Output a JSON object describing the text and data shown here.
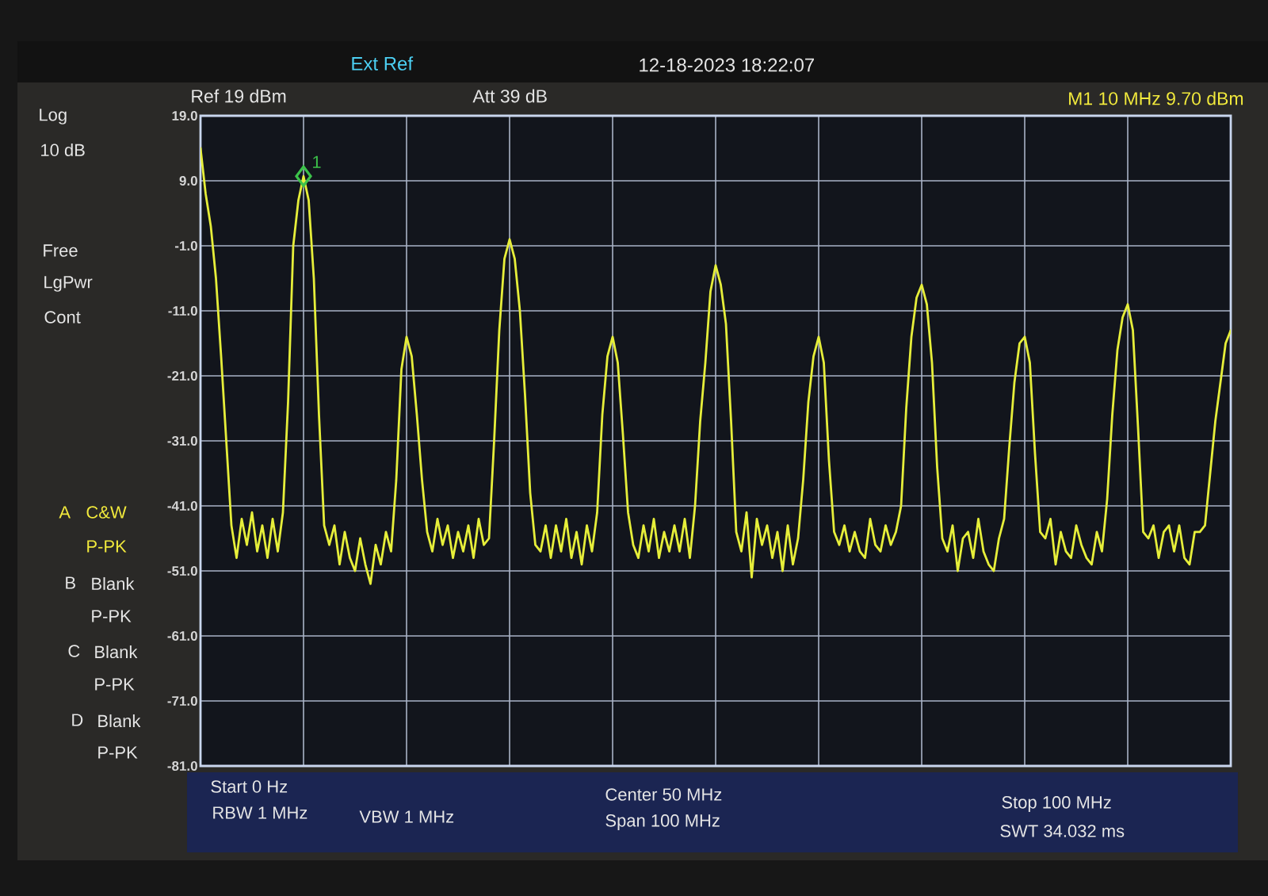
{
  "chart_data": {
    "type": "line",
    "categories": [
      null,
      null,
      null,
      null,
      null,
      null,
      null,
      null,
      null,
      null,
      null,
      null,
      null,
      null,
      null,
      null,
      null,
      null,
      null,
      null,
      null,
      null,
      null,
      null,
      null,
      null,
      null,
      null,
      null,
      null,
      null,
      null,
      null,
      null,
      null,
      null,
      null,
      null,
      null,
      null,
      null,
      null,
      null,
      null,
      null,
      null,
      null,
      null,
      null,
      null,
      null,
      null,
      null,
      null,
      null,
      null,
      null,
      null,
      null,
      null,
      null,
      null,
      null,
      null,
      null,
      null,
      null,
      null,
      null,
      null,
      null,
      null,
      null,
      null,
      null,
      null,
      null,
      null,
      null,
      null,
      null,
      null,
      null,
      null,
      null,
      null,
      null,
      null,
      null,
      null,
      null,
      null,
      null,
      null,
      null,
      null,
      null,
      null,
      null,
      null,
      null,
      null,
      null,
      null,
      null,
      null,
      null,
      null,
      null,
      null,
      null,
      null,
      null,
      null,
      null,
      null,
      null,
      null,
      null,
      null,
      null,
      null,
      null,
      null,
      null,
      null,
      null,
      null,
      null,
      null,
      null,
      null,
      null,
      null,
      null,
      null,
      null,
      null,
      null,
      null,
      null,
      null,
      null,
      null,
      null,
      null,
      null,
      null,
      null,
      null,
      null,
      null,
      null,
      null,
      null,
      null,
      null,
      null,
      null,
      null,
      null,
      null,
      null,
      null,
      null,
      null,
      null,
      null,
      null,
      null,
      null,
      null,
      null,
      null,
      null,
      null,
      null,
      null,
      null,
      null,
      null,
      null,
      null,
      null,
      null,
      null,
      null,
      null,
      null,
      null,
      null,
      null,
      null,
      null,
      null,
      null,
      null,
      null,
      null,
      null,
      null
    ],
    "ylim": [
      -81,
      19
    ],
    "yticks": [
      {
        "value": 19,
        "label": "19.0"
      },
      {
        "value": 9,
        "label": "9.0"
      },
      {
        "value": -1,
        "label": "-1.0"
      },
      {
        "value": -11,
        "label": "-11.0"
      },
      {
        "value": -21,
        "label": "-21.0"
      },
      {
        "value": -31,
        "label": "-31.0"
      },
      {
        "value": -41,
        "label": "-41.0"
      },
      {
        "value": -51,
        "label": "-51.0"
      },
      {
        "value": -61,
        "label": "-61.0"
      },
      {
        "value": -71,
        "label": "-71.0"
      },
      {
        "value": -81,
        "label": "-81.0"
      }
    ],
    "tick_labels": "y",
    "grid": true,
    "legend": false,
    "series": [
      {
        "color": "#e6ee3a",
        "values": [
          14,
          7,
          2,
          -6,
          -18,
          -31,
          -44,
          -49,
          -43,
          -47,
          -42,
          -48,
          -44,
          -49,
          -43,
          -48,
          -42,
          -25,
          -1,
          6,
          9.7,
          6,
          -6,
          -27,
          -44,
          -47,
          -44,
          -50,
          -45,
          -49,
          -51,
          -46,
          -50,
          -53,
          -47,
          -50,
          -45,
          -48,
          -37,
          -20,
          -15,
          -18,
          -27,
          -37,
          -45,
          -48,
          -43,
          -47,
          -44,
          -49,
          -45,
          -48,
          -44,
          -49,
          -43,
          -47,
          -46,
          -31,
          -14,
          -3,
          0,
          -3,
          -11,
          -24,
          -39,
          -47,
          -48,
          -44,
          -49,
          -44,
          -48,
          -43,
          -49,
          -45,
          -50,
          -44,
          -48,
          -42,
          -27,
          -18,
          -15,
          -19,
          -30,
          -42,
          -47,
          -49,
          -44,
          -48,
          -43,
          -49,
          -45,
          -48,
          -44,
          -48,
          -43,
          -49,
          -41,
          -28,
          -19,
          -8,
          -4,
          -7,
          -13,
          -28,
          -45,
          -48,
          -42,
          -52,
          -43,
          -47,
          -44,
          -49,
          -45,
          -51,
          -44,
          -50,
          -46,
          -37,
          -25,
          -18,
          -15,
          -19,
          -34,
          -45,
          -47,
          -44,
          -48,
          -45,
          -48,
          -49,
          -43,
          -47,
          -48,
          -44,
          -47,
          -45,
          -41,
          -26,
          -15,
          -9,
          -7,
          -10,
          -19,
          -35,
          -46,
          -48,
          -44,
          -51,
          -46,
          -45,
          -49,
          -43,
          -48,
          -50,
          -51,
          -46,
          -43,
          -32,
          -22,
          -16,
          -15,
          -19,
          -33,
          -45,
          -46,
          -43,
          -50,
          -45,
          -48,
          -49,
          -44,
          -47,
          -49,
          -50,
          -45,
          -48,
          -40,
          -27,
          -17,
          -12,
          -10,
          -14,
          -29,
          -45,
          -46,
          -44,
          -49,
          -45,
          -44,
          -48,
          -44,
          -49,
          -50,
          -45,
          -45,
          -44,
          -36,
          -28,
          -22,
          -16,
          -14
        ]
      },
      {
        "type": "scatter",
        "name": "1",
        "color": "#3cc24a",
        "marker": "diamond",
        "values": [
          null,
          null,
          null,
          null,
          null,
          null,
          null,
          null,
          null,
          null,
          null,
          null,
          null,
          null,
          null,
          null,
          null,
          null,
          null,
          null,
          9.7,
          null,
          null,
          null,
          null,
          null,
          null,
          null,
          null,
          null,
          null,
          null,
          null,
          null,
          null,
          null,
          null,
          null,
          null,
          null,
          null,
          null,
          null,
          null,
          null,
          null,
          null,
          null,
          null,
          null,
          null,
          null,
          null,
          null,
          null,
          null,
          null,
          null,
          null,
          null,
          null,
          null,
          null,
          null,
          null,
          null,
          null,
          null,
          null,
          null,
          null,
          null,
          null,
          null,
          null,
          null,
          null,
          null,
          null,
          null,
          null,
          null,
          null,
          null,
          null,
          null,
          null,
          null,
          null,
          null,
          null,
          null,
          null,
          null,
          null,
          null,
          null,
          null,
          null,
          null,
          null,
          null,
          null,
          null,
          null,
          null,
          null,
          null,
          null,
          null,
          null,
          null,
          null,
          null,
          null,
          null,
          null,
          null,
          null,
          null,
          null,
          null,
          null,
          null,
          null,
          null,
          null,
          null,
          null,
          null,
          null,
          null,
          null,
          null,
          null,
          null,
          null,
          null,
          null,
          null,
          null,
          null,
          null,
          null,
          null,
          null,
          null,
          null,
          null,
          null,
          null,
          null,
          null,
          null,
          null,
          null,
          null,
          null,
          null,
          null,
          null,
          null,
          null,
          null,
          null,
          null,
          null,
          null,
          null,
          null,
          null,
          null,
          null,
          null,
          null,
          null,
          null,
          null,
          null,
          null,
          null,
          null,
          null,
          null,
          null,
          null,
          null,
          null,
          null,
          null,
          null,
          null,
          null,
          null,
          null,
          null,
          null,
          null,
          null,
          null,
          null
        ]
      }
    ],
    "annotations": [
      "Ext Ref",
      "12-18-2023 18:22:07",
      "Ref 19 dBm",
      "Att 39 dB",
      "M1 10 MHz 9.70 dBm",
      "Log",
      "10 dB",
      "Free",
      "LgPwr",
      "Cont",
      "A",
      "C&W",
      "P-PK",
      "B",
      "Blank",
      "P-PK",
      "C",
      "Blank",
      "P-PK",
      "D",
      "Blank",
      "P-PK",
      "Start 0 Hz",
      "RBW 1 MHz",
      "VBW 1 MHz",
      "Center 50 MHz",
      "Span 100 MHz",
      "Stop 100 MHz",
      "SWT 34.032 ms"
    ]
  }
}
